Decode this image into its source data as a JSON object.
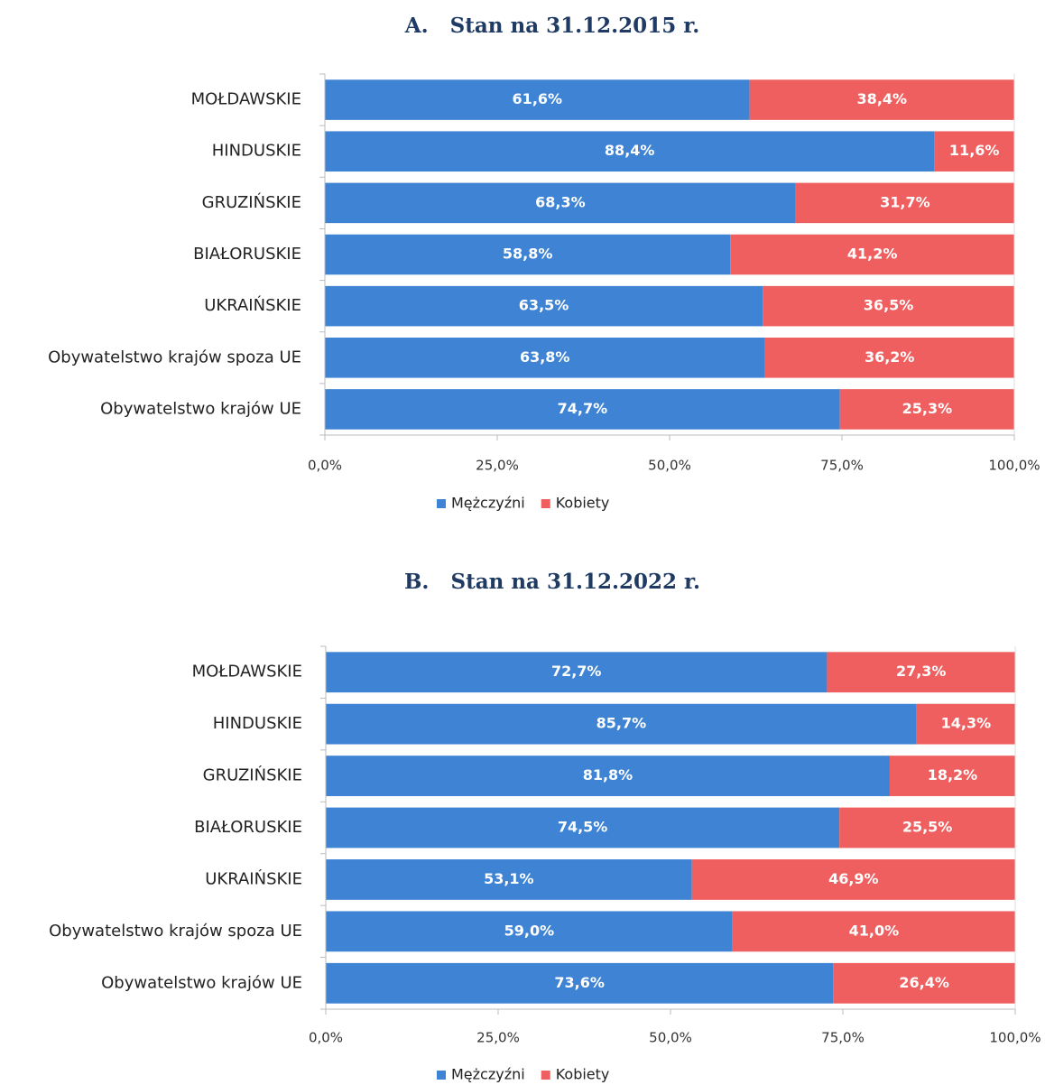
{
  "chart_data": [
    {
      "type": "stacked-bar-horizontal",
      "title": "A.   Stan na 31.12.2015 r.",
      "categories": [
        "MOŁDAWSKIE",
        "HINDUSKIE",
        "GRUZIŃSKIE",
        "BIAŁORUSKIE",
        "UKRAIŃSKIE",
        "Obywatelstwo krajów spoza UE",
        "Obywatelstwo krajów UE"
      ],
      "series": [
        {
          "name": "Mężczyźni",
          "color": "#3f83d4",
          "values": [
            61.6,
            88.4,
            68.3,
            58.8,
            63.5,
            63.8,
            74.7
          ],
          "value_labels": [
            "61,6%",
            "88,4%",
            "68,3%",
            "58,8%",
            "63,5%",
            "63,8%",
            "74,7%"
          ]
        },
        {
          "name": "Kobiety",
          "color": "#f05f5f",
          "values": [
            38.4,
            11.6,
            31.7,
            41.2,
            36.5,
            36.2,
            25.3
          ],
          "value_labels": [
            "38,4%",
            "11,6%",
            "31,7%",
            "41,2%",
            "36,5%",
            "36,2%",
            "25,3%"
          ]
        }
      ],
      "xlim": [
        0,
        100
      ],
      "xticks": [
        {
          "value": 0,
          "label": "0,0%"
        },
        {
          "value": 25,
          "label": "25,0%"
        },
        {
          "value": 50,
          "label": "50,0%"
        },
        {
          "value": 75,
          "label": "75,0%"
        },
        {
          "value": 100,
          "label": "100,0%"
        }
      ],
      "legend": "bottom"
    },
    {
      "type": "stacked-bar-horizontal",
      "title": "B.   Stan na 31.12.2022 r.",
      "categories": [
        "MOŁDAWSKIE",
        "HINDUSKIE",
        "GRUZIŃSKIE",
        "BIAŁORUSKIE",
        "UKRAIŃSKIE",
        "Obywatelstwo krajów spoza UE",
        "Obywatelstwo krajów UE"
      ],
      "series": [
        {
          "name": "Mężczyźni",
          "color": "#3f83d4",
          "values": [
            72.7,
            85.7,
            81.8,
            74.5,
            53.1,
            59.0,
            73.6
          ],
          "value_labels": [
            "72,7%",
            "85,7%",
            "81,8%",
            "74,5%",
            "53,1%",
            "59,0%",
            "73,6%"
          ]
        },
        {
          "name": "Kobiety",
          "color": "#f05f5f",
          "values": [
            27.3,
            14.3,
            18.2,
            25.5,
            46.9,
            41.0,
            26.4
          ],
          "value_labels": [
            "27,3%",
            "14,3%",
            "18,2%",
            "25,5%",
            "46,9%",
            "41,0%",
            "26,4%"
          ]
        }
      ],
      "xlim": [
        0,
        100
      ],
      "xticks": [
        {
          "value": 0,
          "label": "0,0%"
        },
        {
          "value": 25,
          "label": "25,0%"
        },
        {
          "value": 50,
          "label": "50,0%"
        },
        {
          "value": 75,
          "label": "75,0%"
        },
        {
          "value": 100,
          "label": "100,0%"
        }
      ],
      "legend": "bottom"
    }
  ]
}
